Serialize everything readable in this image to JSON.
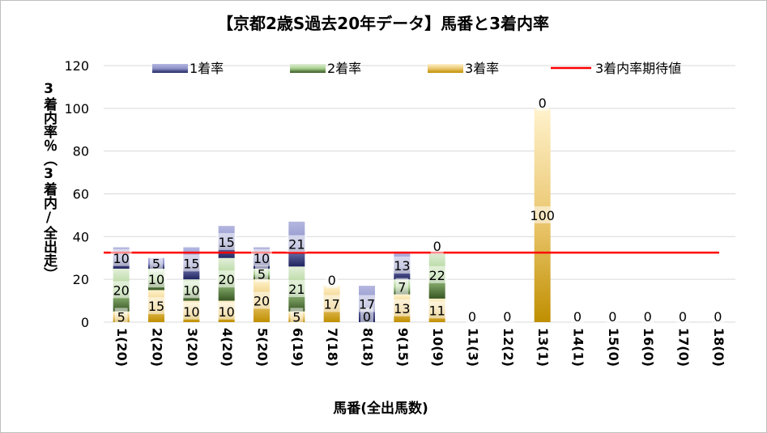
{
  "chart_data": {
    "type": "bar",
    "stacked": true,
    "title": "【京都2歳S過去20年データ】馬番と3着内率",
    "xlabel": "馬番(全出馬数)",
    "ylabel": "3着内率％（3着内/全出走）",
    "ylim": [
      0,
      120
    ],
    "yticks": [
      0,
      20,
      40,
      60,
      80,
      100,
      120
    ],
    "categories": [
      "1(20)",
      "2(20)",
      "3(20)",
      "4(20)",
      "5(20)",
      "6(19)",
      "7(18)",
      "8(18)",
      "9(15)",
      "10(9)",
      "11(3)",
      "12(2)",
      "13(1)",
      "14(1)",
      "15(0)",
      "16(0)",
      "17(0)",
      "18(0)"
    ],
    "series": [
      {
        "name": "3着率",
        "color": "#c9922a",
        "values": [
          5,
          15,
          10,
          10,
          20,
          5,
          17,
          0,
          13,
          11,
          0,
          0,
          100,
          0,
          0,
          0,
          0,
          0
        ]
      },
      {
        "name": "2着率",
        "color": "#548235",
        "values": [
          20,
          10,
          10,
          20,
          5,
          21,
          0,
          0,
          7,
          22,
          0,
          0,
          0,
          0,
          0,
          0,
          0,
          0
        ]
      },
      {
        "name": "1着率",
        "color": "#2e3575",
        "values": [
          10,
          5,
          15,
          15,
          10,
          21,
          0,
          17,
          13,
          0,
          0,
          0,
          0,
          0,
          0,
          0,
          0,
          0
        ]
      }
    ],
    "labels": {
      "3着率": [
        "5",
        "15",
        "10",
        "10",
        "20",
        "5",
        "17",
        "0",
        "13",
        "11",
        "0",
        "0",
        "100",
        "0",
        "0",
        "0",
        "0",
        "0"
      ],
      "2着率": [
        "20",
        "10",
        "10",
        "20",
        "5",
        "21",
        "0",
        "",
        "7",
        "22",
        "",
        "",
        "",
        "",
        "",
        "",
        "",
        ""
      ],
      "1着率": [
        "10",
        "5",
        "15",
        "15",
        "10",
        "21",
        "",
        "17",
        "13",
        "0",
        "",
        "",
        "0",
        "",
        "",
        "",
        "",
        ""
      ]
    },
    "reference_line": {
      "name": "3着内率期待値",
      "value": 32.5,
      "color": "#ff0000"
    },
    "legend_position": "top",
    "grid": true
  }
}
